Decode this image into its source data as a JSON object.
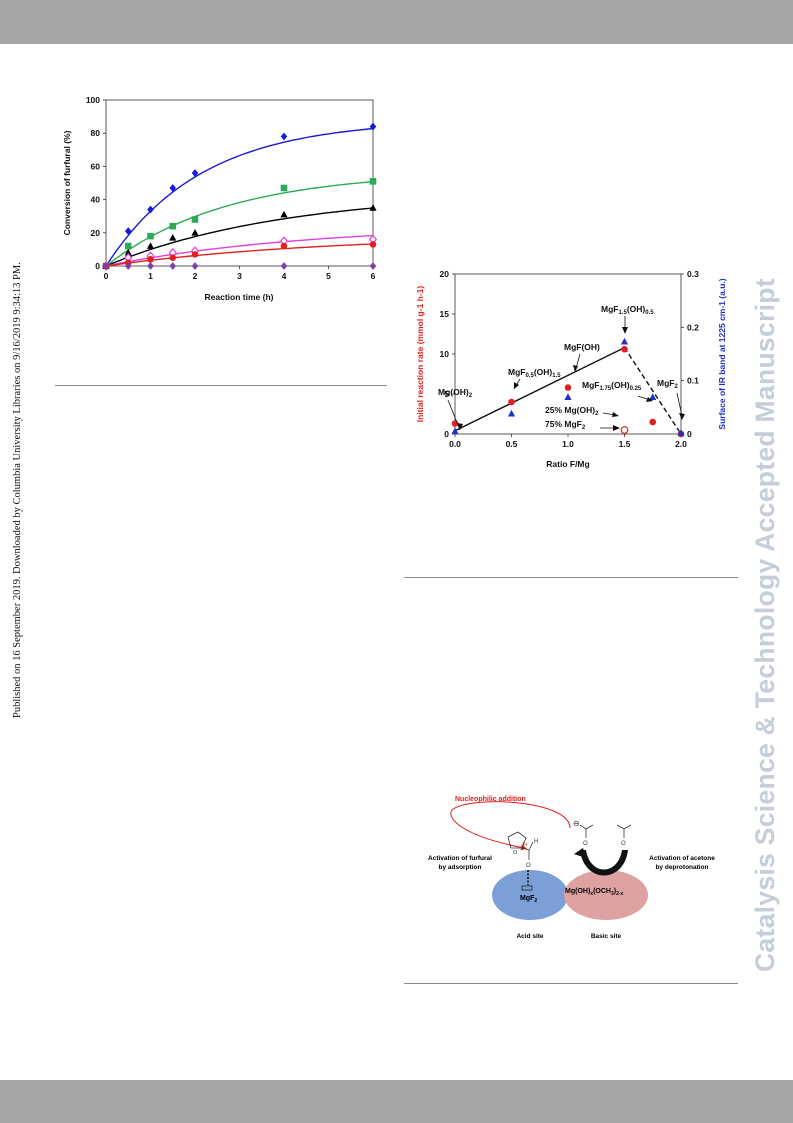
{
  "side_text": {
    "published": "Published on 16 September 2019. Downloaded by Columbia University Libraries on 9/16/2019 9:34:13 PM.",
    "watermark": "Catalysis Science & Technology Accepted Manuscript"
  },
  "chart_data": [
    {
      "type": "scatter",
      "xlabel": "Reaction time (h)",
      "ylabel": "Conversion of furfural (%)",
      "xlim": [
        0,
        6
      ],
      "ylim": [
        0,
        100
      ],
      "xticks": [
        "0",
        "1",
        "2",
        "3",
        "4",
        "5",
        "6"
      ],
      "yticks": [
        "0",
        "20",
        "40",
        "60",
        "80",
        "100"
      ],
      "series": [
        {
          "color": "#1a1ad6",
          "marker": "diamond",
          "x": [
            0,
            0.5,
            1,
            1.5,
            2,
            4,
            6
          ],
          "y": [
            0,
            21,
            34,
            47,
            56,
            78,
            84
          ],
          "fit_k": 0.47,
          "fit_a": 88
        },
        {
          "color": "#2daa58",
          "marker": "square",
          "x": [
            0,
            0.5,
            1,
            1.5,
            2,
            4,
            6
          ],
          "y": [
            0,
            12,
            18,
            24,
            28,
            47,
            51
          ],
          "fit_k": 0.37,
          "fit_a": 57
        },
        {
          "color": "#000000",
          "marker": "triangle",
          "x": [
            0,
            0.5,
            1,
            1.5,
            2,
            4,
            6
          ],
          "y": [
            0,
            8,
            12,
            17,
            20,
            31,
            35
          ],
          "fit_k": 0.25,
          "fit_a": 45
        },
        {
          "color": "#e040e0",
          "marker": "diamond-open",
          "x": [
            0,
            0.5,
            1,
            1.5,
            2,
            4,
            6
          ],
          "y": [
            0,
            5,
            6,
            8,
            9,
            15,
            16
          ],
          "fit_k": 0.22,
          "fit_a": 25
        },
        {
          "color": "#e02020",
          "marker": "circle",
          "x": [
            0,
            0.5,
            1,
            1.5,
            2,
            4,
            6
          ],
          "y": [
            0,
            2,
            4,
            5,
            7,
            12,
            13
          ],
          "fit_k": 0.2,
          "fit_a": 19
        },
        {
          "color": "#7a3fa8",
          "marker": "diamond",
          "x": [
            0,
            0.5,
            1,
            1.5,
            2,
            4,
            6
          ],
          "y": [
            0,
            0,
            0,
            0,
            0,
            0,
            0
          ],
          "fit_k": 0,
          "fit_a": 0
        }
      ]
    },
    {
      "type": "scatter",
      "xlabel": "Ratio F/Mg",
      "ylabel": "Initial reaction rate  (mmol g-1 h-1)",
      "y2label": "Surface of IR band at 1225 cm-1 (a.u.)",
      "xlim": [
        0,
        2
      ],
      "ylim": [
        0,
        20
      ],
      "y2lim": [
        0,
        0.3
      ],
      "xticks": [
        "0.0",
        "0.5",
        "1.0",
        "1.5",
        "2.0"
      ],
      "yticks": [
        "0",
        "5",
        "10",
        "15",
        "20"
      ],
      "y2ticks": [
        "0",
        "0.1",
        "0.2",
        "0.3"
      ],
      "series": [
        {
          "axis": "left",
          "color": "#e02020",
          "marker": "circle",
          "x": [
            0,
            0.5,
            1.0,
            1.5,
            1.75,
            2.0
          ],
          "y": [
            1.3,
            4.0,
            5.8,
            10.6,
            1.5,
            0
          ]
        },
        {
          "axis": "right",
          "color": "#2030c8",
          "marker": "triangle",
          "x": [
            0,
            0.5,
            1.0,
            1.5,
            1.75,
            2.0
          ],
          "y": [
            0.005,
            0.038,
            0.069,
            0.173,
            0.069,
            0.002
          ]
        },
        {
          "axis": "left",
          "color": "#e02020",
          "marker": "circle-open",
          "x": [
            1.5
          ],
          "y": [
            0.5
          ]
        }
      ],
      "trend_solid": {
        "x": [
          0,
          1.5
        ],
        "y": [
          0.4,
          10.8
        ]
      },
      "trend_dashed": {
        "x": [
          1.5,
          2.0
        ],
        "y": [
          10.8,
          0
        ]
      },
      "labels": [
        {
          "text": "Mg(OH)",
          "sub": "2"
        },
        {
          "text": "MgF",
          "sub": "0.5",
          "text2": "(OH)",
          "sub2": "1.5"
        },
        {
          "text": "MgF(OH)"
        },
        {
          "text": "MgF",
          "sub": "1.5",
          "text2": "(OH)",
          "sub2": "0.5"
        },
        {
          "text": "MgF",
          "sub": "1.75",
          "text2": "(OH)",
          "sub2": "0.25"
        },
        {
          "text": "MgF",
          "sub": "2"
        },
        {
          "text": "25% Mg(OH)",
          "sub": "2"
        },
        {
          "text": "75% MgF",
          "sub": "2"
        }
      ]
    }
  ],
  "scheme": {
    "nucleophilic": "Nucleophilic addition",
    "activation_furfural_1": "Activation of furfural",
    "activation_furfural_2": "by adsorption",
    "activation_acetone_1": "Activation of acetone",
    "activation_acetone_2": "by deprotonation",
    "acid_species": "MgF",
    "acid_species_sub": "2",
    "basic_species_a": "Mg(OH)",
    "basic_species_sub_a": "x",
    "basic_species_b": "(OCH",
    "basic_species_sub_b": "3",
    "basic_species_c": ")",
    "basic_species_sub_c": "2-x",
    "acid_site": "Acid site",
    "basic_site": "Basic site",
    "atom_H": "H",
    "atom_O": "O",
    "delta_plus": "δ+",
    "minus": "⊖"
  }
}
